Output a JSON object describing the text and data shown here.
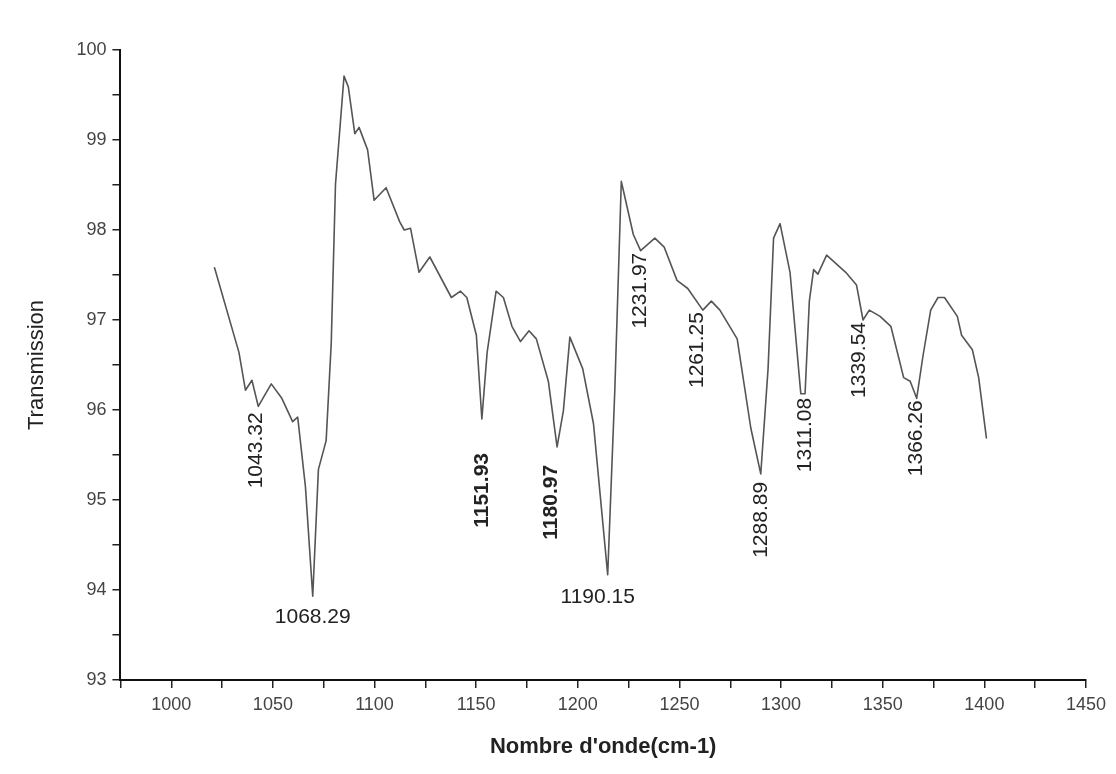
{
  "chart_data": {
    "type": "line",
    "xlabel": "Nombre d'onde(cm-1)",
    "ylabel": "Transmission",
    "series": [
      {
        "color": "#555555",
        "x": [
          1021.3,
          1033.3,
          1036.5,
          1039.7,
          1042.8,
          1049.2,
          1054.4,
          1059.7,
          1062.2,
          1066,
          1069.6,
          1072.4,
          1076.2,
          1078.7,
          1080.8,
          1085,
          1087.1,
          1090.3,
          1092.4,
          1096.6,
          1099.8,
          1105.7,
          1112.4,
          1114.6,
          1117.7,
          1121.9,
          1127.2,
          1137.8,
          1142.3,
          1145.4,
          1150.1,
          1152.8,
          1155.4,
          1159.8,
          1163.4,
          1167.6,
          1171.8,
          1176,
          1179.6,
          1185.5,
          1189.8,
          1192.9,
          1196.1,
          1202.4,
          1207.7,
          1214.7,
          1218.2,
          1221.4,
          1223.5,
          1227.3,
          1230.9,
          1237.9,
          1242.5,
          1248.8,
          1254.1,
          1261.5,
          1265.7,
          1269.9,
          1278.4,
          1285.1,
          1290,
          1293.6,
          1296.3,
          1299.5,
          1304.4,
          1309.7,
          1311.8,
          1313.9,
          1316,
          1318.1,
          1322.4,
          1331.8,
          1337.1,
          1340.3,
          1343.4,
          1348.7,
          1354,
          1360.3,
          1363.5,
          1366.7,
          1369.8,
          1373.6,
          1377.2,
          1380.4,
          1386.7,
          1388.8,
          1394.1,
          1397.2,
          1401
        ],
        "values": [
          97.58,
          96.64,
          96.22,
          96.33,
          96.04,
          96.29,
          96.13,
          95.87,
          95.92,
          95.15,
          93.93,
          95.34,
          95.66,
          96.74,
          98.51,
          99.71,
          99.59,
          99.07,
          99.14,
          98.89,
          98.33,
          98.47,
          98.09,
          98.0,
          98.02,
          97.53,
          97.7,
          97.25,
          97.32,
          97.25,
          96.83,
          95.9,
          96.64,
          97.32,
          97.25,
          96.93,
          96.76,
          96.88,
          96.79,
          96.32,
          95.59,
          95.99,
          96.81,
          96.46,
          95.85,
          94.17,
          96.22,
          98.54,
          98.33,
          97.95,
          97.77,
          97.91,
          97.81,
          97.44,
          97.35,
          97.11,
          97.21,
          97.11,
          96.79,
          95.8,
          95.29,
          96.46,
          97.91,
          98.07,
          97.53,
          96.18,
          96.18,
          97.21,
          97.56,
          97.51,
          97.72,
          97.53,
          97.39,
          97.0,
          97.11,
          97.04,
          96.93,
          96.36,
          96.32,
          96.13,
          96.6,
          97.11,
          97.25,
          97.25,
          97.04,
          96.83,
          96.67,
          96.36,
          95.69
        ]
      }
    ],
    "xlim": [
      975,
      1450
    ],
    "xticks": [
      {
        "value": 975,
        "label": null
      },
      1000,
      {
        "value": 1025,
        "label": null
      },
      1050,
      {
        "value": 1075,
        "label": null
      },
      1100,
      {
        "value": 1125,
        "label": null
      },
      1150,
      {
        "value": 1175,
        "label": null
      },
      1200,
      {
        "value": 1225,
        "label": null
      },
      1250,
      {
        "value": 1275,
        "label": null
      },
      1300,
      {
        "value": 1325,
        "label": null
      },
      1350,
      {
        "value": 1375,
        "label": null
      },
      1400,
      {
        "value": 1425,
        "label": null
      },
      1450
    ],
    "ylim": [
      93,
      100
    ],
    "yticks": [
      93,
      {
        "value": 93.5,
        "label": null
      },
      94,
      {
        "value": 94.5,
        "label": null
      },
      95,
      {
        "value": 95.5,
        "label": null
      },
      96,
      {
        "value": 96.5,
        "label": null
      },
      97,
      {
        "value": 97.5,
        "label": null
      },
      98,
      {
        "value": 98.5,
        "label": null
      },
      99,
      {
        "value": 99.5,
        "label": null
      },
      100
    ],
    "grid": false,
    "legend": false,
    "marker": "none",
    "line_style": "solid",
    "annotations": [
      {
        "text": "1043.32",
        "x": 1042.8,
        "y": 96.04
      },
      {
        "text": "1068.29",
        "x": 1069.6,
        "y": 93.93
      },
      {
        "text": "1151.93",
        "x": 1152.8,
        "y": 95.9
      },
      {
        "text": "1180.97",
        "x": 1189.8,
        "y": 95.59
      },
      {
        "text": "1190.15",
        "x": 1214.7,
        "y": 94.17
      },
      {
        "text": "1231.97",
        "x": 1230.9,
        "y": 97.77
      },
      {
        "text": "1261.25",
        "x": 1261.5,
        "y": 97.11
      },
      {
        "text": "1288.89",
        "x": 1290,
        "y": 95.29
      },
      {
        "text": "1311.08",
        "x": 1311.8,
        "y": 96.18
      },
      {
        "text": "1339.54",
        "x": 1340.3,
        "y": 97.0
      },
      {
        "text": "1366.26",
        "x": 1366.7,
        "y": 96.13
      }
    ]
  }
}
